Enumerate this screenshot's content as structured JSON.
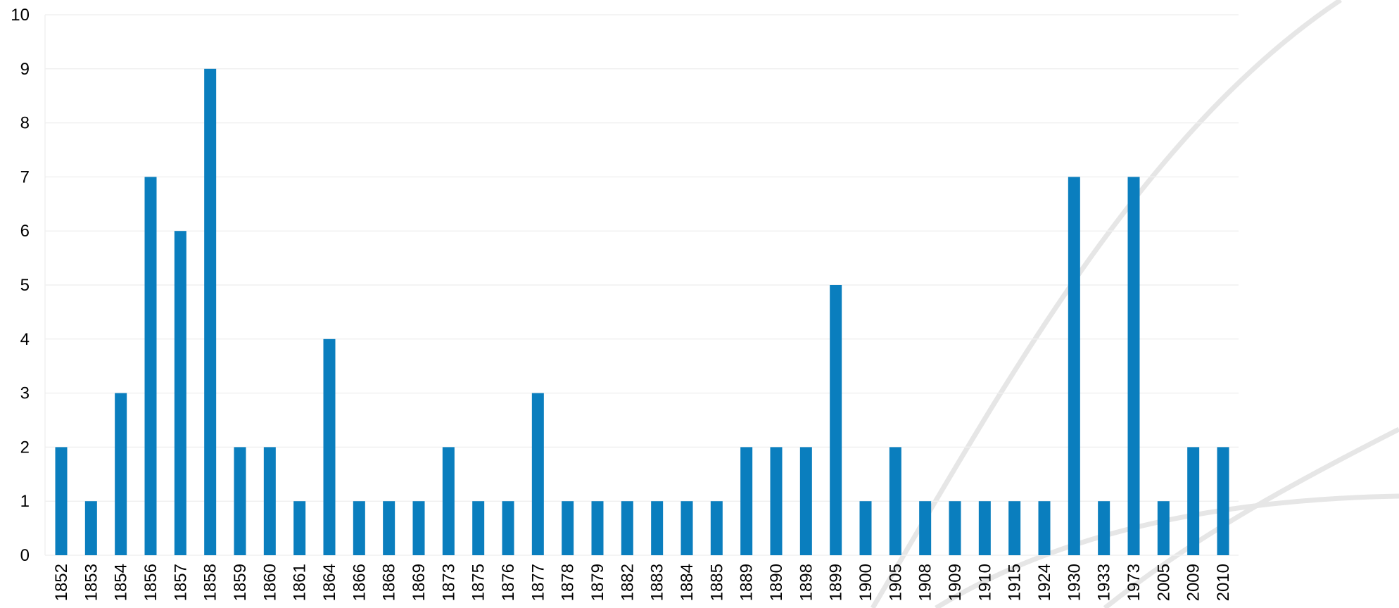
{
  "chart_data": {
    "type": "bar",
    "title": "",
    "xlabel": "",
    "ylabel": "",
    "ylim": [
      0,
      10
    ],
    "yticks": [
      0,
      1,
      2,
      3,
      4,
      5,
      6,
      7,
      8,
      9,
      10
    ],
    "grid": true,
    "bar_color": "#0a7ebe",
    "categories": [
      "1852",
      "1853",
      "1854",
      "1856",
      "1857",
      "1858",
      "1859",
      "1860",
      "1861",
      "1864",
      "1866",
      "1868",
      "1869",
      "1873",
      "1875",
      "1876",
      "1877",
      "1878",
      "1879",
      "1882",
      "1883",
      "1884",
      "1885",
      "1889",
      "1890",
      "1898",
      "1899",
      "1900",
      "1905",
      "1908",
      "1909",
      "1910",
      "1915",
      "1924",
      "1930",
      "1933",
      "1973",
      "2005",
      "2009",
      "2010"
    ],
    "values": [
      2,
      1,
      3,
      7,
      6,
      9,
      2,
      2,
      1,
      4,
      1,
      1,
      1,
      2,
      1,
      1,
      3,
      1,
      1,
      1,
      1,
      1,
      1,
      2,
      2,
      2,
      5,
      1,
      2,
      1,
      1,
      1,
      1,
      1,
      7,
      1,
      7,
      1,
      2,
      2
    ]
  }
}
